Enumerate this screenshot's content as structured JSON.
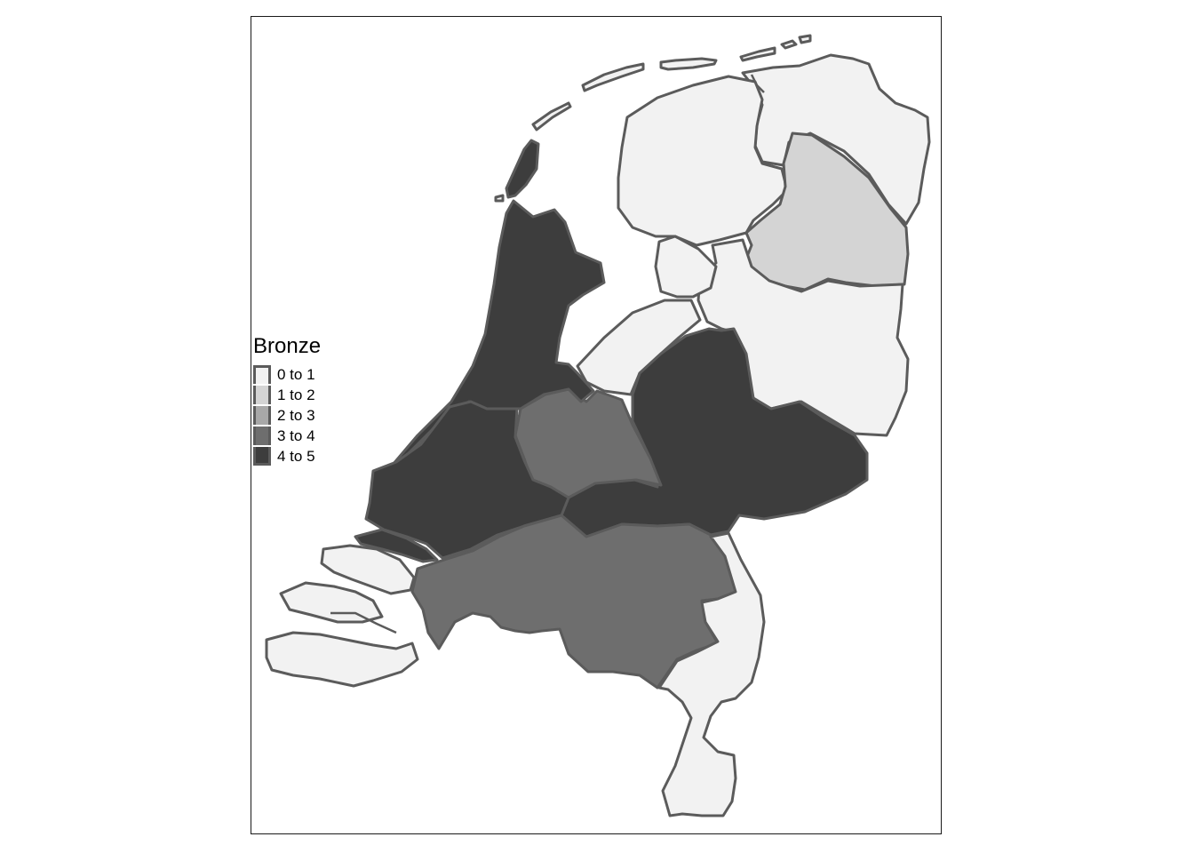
{
  "map": {
    "legend_title": "Bronze",
    "classes": [
      {
        "label": "0 to 1",
        "color": "#f2f2f2"
      },
      {
        "label": "1 to 2",
        "color": "#d4d4d4"
      },
      {
        "label": "2 to 3",
        "color": "#a8a8a8"
      },
      {
        "label": "3 to 4",
        "color": "#6e6e6e"
      },
      {
        "label": "4 to 5",
        "color": "#3d3d3d"
      }
    ],
    "border_color": "#5b5b5b",
    "provinces": [
      {
        "id": "groningen",
        "class": 0
      },
      {
        "id": "friesland",
        "class": 0
      },
      {
        "id": "drenthe",
        "class": 1
      },
      {
        "id": "overijssel",
        "class": 0
      },
      {
        "id": "flevoland",
        "class": 0
      },
      {
        "id": "gelderland",
        "class": 4
      },
      {
        "id": "utrecht",
        "class": 3
      },
      {
        "id": "noord-holland",
        "class": 4
      },
      {
        "id": "zuid-holland",
        "class": 4
      },
      {
        "id": "zeeland",
        "class": 0
      },
      {
        "id": "noord-brabant",
        "class": 3
      },
      {
        "id": "limburg",
        "class": 0
      }
    ]
  }
}
